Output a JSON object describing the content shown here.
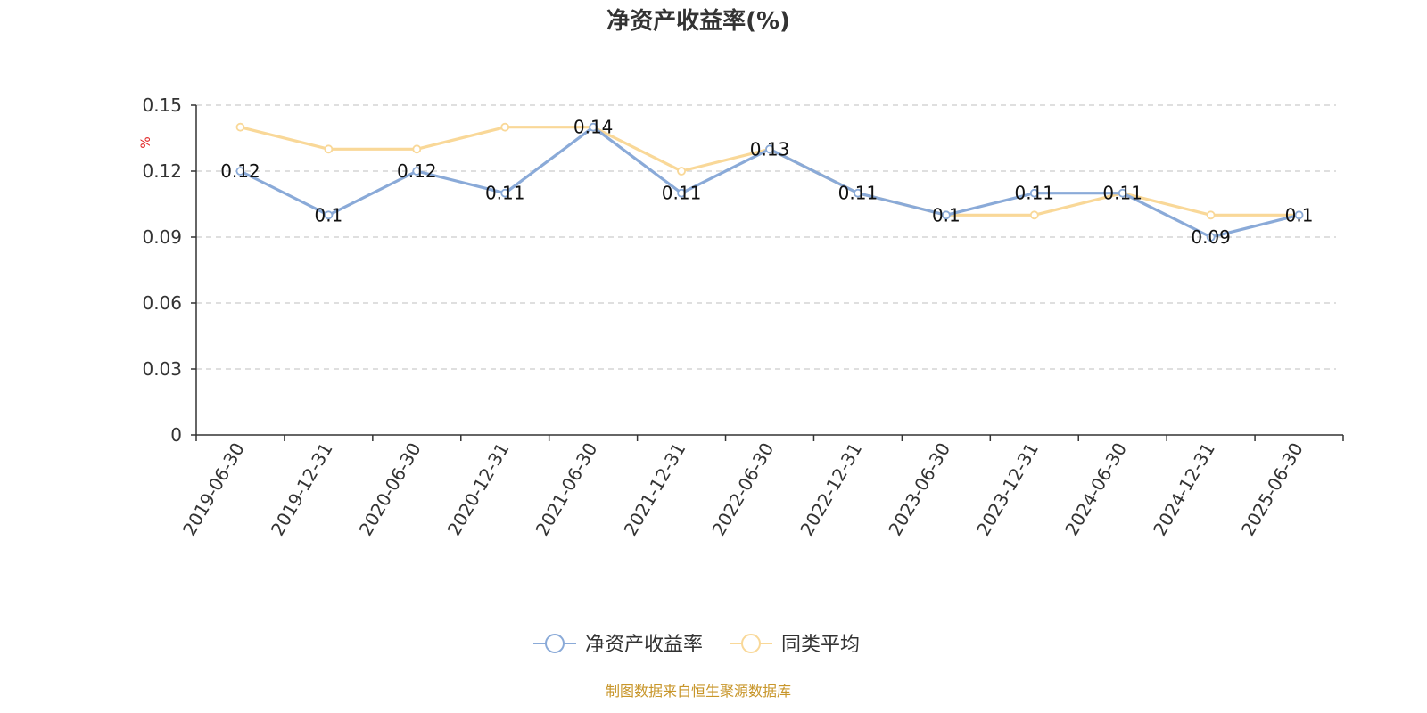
{
  "chart_data": {
    "type": "line",
    "title": "净资产收益率(%)",
    "ylabel": "%",
    "xlabel": "",
    "ylim": [
      0,
      0.15
    ],
    "yticks": [
      0,
      0.03,
      0.06,
      0.09,
      0.12,
      0.15
    ],
    "ytick_labels": [
      "0",
      "0.03",
      "0.06",
      "0.09",
      "0.12",
      "0.15"
    ],
    "grid": true,
    "legend_position": "bottom-center",
    "categories": [
      "2019-06-30",
      "2019-12-31",
      "2020-06-30",
      "2020-12-31",
      "2021-06-30",
      "2021-12-31",
      "2022-06-30",
      "2022-12-31",
      "2023-06-30",
      "2023-12-31",
      "2024-06-30",
      "2024-12-31",
      "2025-06-30"
    ],
    "series": [
      {
        "name": "净资产收益率",
        "color": "#8aaad8",
        "values": [
          0.12,
          0.1,
          0.12,
          0.11,
          0.14,
          0.11,
          0.13,
          0.11,
          0.1,
          0.11,
          0.11,
          0.09,
          0.1
        ],
        "labels": [
          "0.12",
          "0.1",
          "0.12",
          "0.11",
          "0.14",
          "0.11",
          "0.13",
          "0.11",
          "0.1",
          "0.11",
          "0.11",
          "0.09",
          "0.1"
        ]
      },
      {
        "name": "同类平均",
        "color": "#f9d898",
        "values": [
          0.14,
          0.13,
          0.13,
          0.14,
          0.14,
          0.12,
          0.13,
          0.11,
          0.1,
          0.1,
          0.11,
          0.1,
          0.1
        ]
      }
    ]
  },
  "source": "制图数据来自恒生聚源数据库"
}
